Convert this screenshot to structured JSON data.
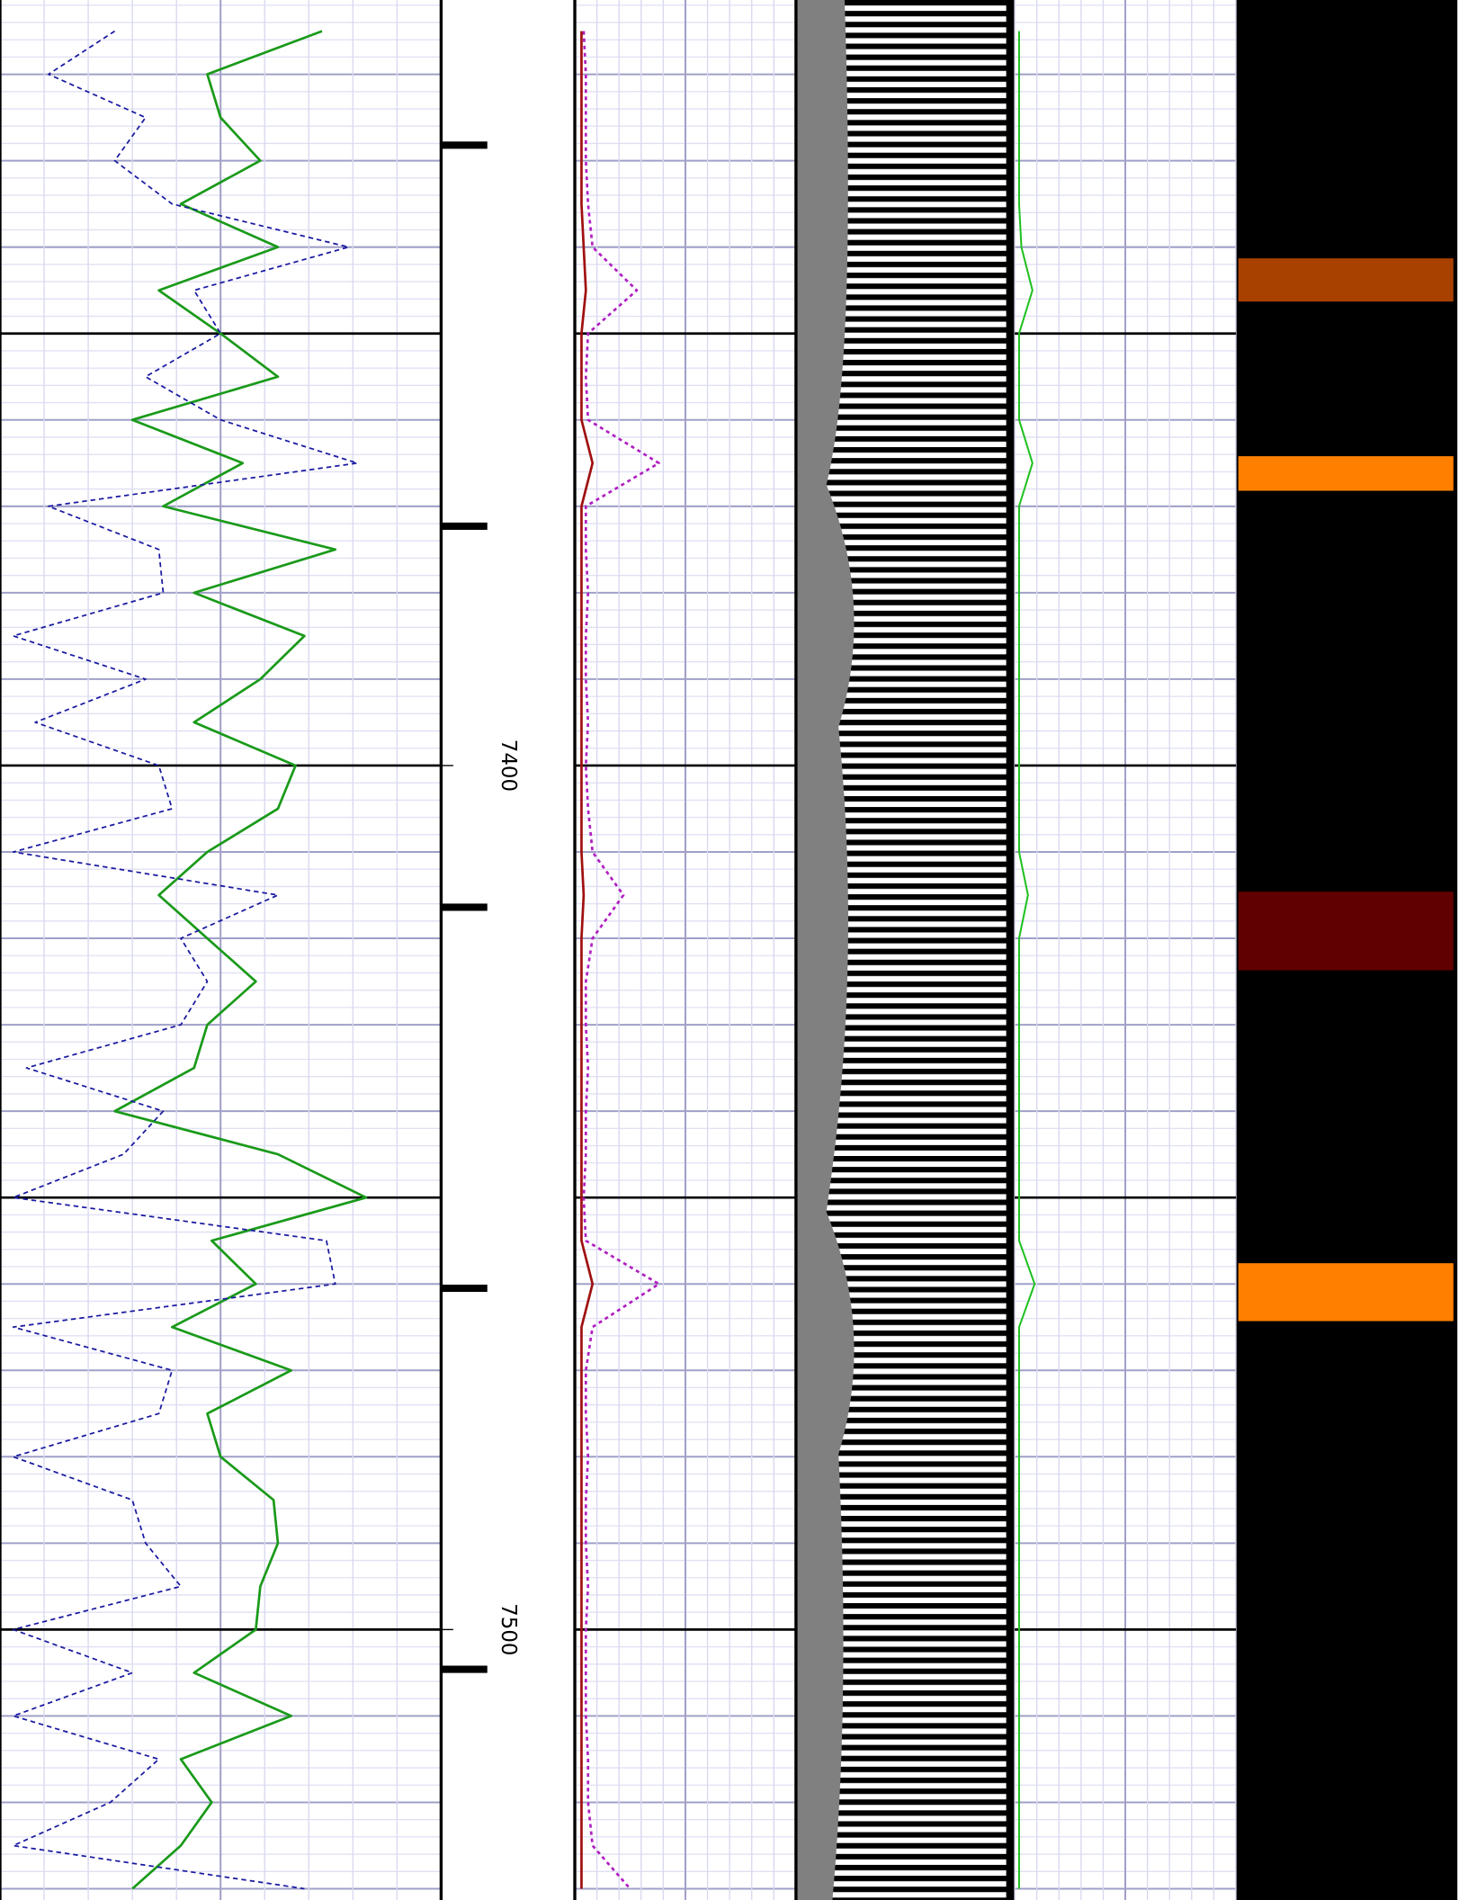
{
  "chart_data": {
    "type": "well-log",
    "ylim": [
      7311.4,
      7531.3
    ],
    "yticks": [
      7400,
      7500
    ],
    "major_grid": [
      7350,
      7400,
      7450,
      7500
    ],
    "grid_step": 10,
    "minor_step": 2,
    "xlim": [
      0,
      10
    ],
    "xgrid_step": 1,
    "markers": [
      7328.2,
      7372.3,
      7416.4,
      7460.5,
      7504.6
    ],
    "depth": [
      7315,
      7320,
      7325,
      7330,
      7335,
      7340,
      7345,
      7350,
      7355,
      7360,
      7365,
      7370,
      7375,
      7380,
      7385,
      7390,
      7395,
      7400,
      7405,
      7410,
      7415,
      7420,
      7425,
      7430,
      7435,
      7440,
      7445,
      7450,
      7455,
      7460,
      7465,
      7470,
      7475,
      7480,
      7485,
      7490,
      7495,
      7500,
      7505,
      7510,
      7515,
      7520,
      7525,
      7530
    ],
    "series": [
      {
        "track": 1,
        "color": "#1a9a1a",
        "dash": "none",
        "width": 2,
        "values": [
          7.3,
          4.7,
          5.0,
          5.9,
          4.1,
          6.3,
          3.6,
          5.0,
          6.3,
          3.0,
          5.5,
          3.7,
          7.6,
          4.4,
          6.9,
          5.9,
          4.4,
          6.7,
          6.3,
          4.7,
          3.6,
          4.7,
          5.8,
          4.7,
          4.4,
          2.6,
          6.3,
          8.3,
          4.8,
          5.8,
          3.9,
          6.6,
          4.7,
          5.0,
          6.2,
          6.3,
          5.9,
          5.8,
          4.4,
          6.6,
          4.1,
          4.8,
          4.1,
          3.0
        ]
      },
      {
        "track": 1,
        "color": "#1a1aa0",
        "dash": "4 3",
        "width": 1.3,
        "values": [
          2.6,
          1.1,
          3.3,
          2.6,
          3.9,
          7.9,
          4.4,
          5.0,
          3.3,
          5.0,
          8.1,
          1.1,
          3.6,
          3.7,
          0.3,
          3.3,
          0.8,
          3.6,
          3.9,
          0.3,
          6.3,
          4.1,
          4.7,
          4.1,
          0.6,
          3.7,
          2.8,
          0.3,
          7.4,
          7.6,
          0.3,
          3.9,
          3.6,
          0.3,
          3.0,
          3.3,
          4.1,
          0.3,
          3.0,
          0.3,
          3.6,
          2.5,
          0.3,
          6.9
        ]
      },
      {
        "track": 2,
        "color": "#b020c0",
        "dash": "3 3",
        "width": 2,
        "values": [
          0.4,
          0.5,
          0.5,
          0.5,
          0.6,
          0.8,
          2.8,
          0.6,
          0.5,
          0.6,
          3.8,
          0.5,
          0.5,
          0.6,
          0.5,
          0.5,
          0.6,
          0.5,
          0.6,
          0.8,
          2.2,
          0.8,
          0.5,
          0.5,
          0.6,
          0.5,
          0.5,
          0.4,
          0.5,
          3.8,
          0.8,
          0.5,
          0.5,
          0.6,
          0.5,
          0.5,
          0.6,
          0.5,
          0.5,
          0.5,
          0.6,
          0.6,
          0.8,
          2.5
        ]
      },
      {
        "track": 2,
        "color": "#a01010",
        "dash": "none",
        "width": 2,
        "values": [
          0.3,
          0.3,
          0.3,
          0.3,
          0.3,
          0.4,
          0.5,
          0.3,
          0.3,
          0.3,
          0.8,
          0.3,
          0.3,
          0.3,
          0.3,
          0.3,
          0.3,
          0.3,
          0.3,
          0.3,
          0.4,
          0.3,
          0.3,
          0.3,
          0.3,
          0.3,
          0.3,
          0.3,
          0.3,
          0.8,
          0.3,
          0.3,
          0.3,
          0.3,
          0.3,
          0.3,
          0.3,
          0.3,
          0.3,
          0.3,
          0.3,
          0.3,
          0.3,
          0.3
        ]
      },
      {
        "track": 3,
        "color": "#20c020",
        "dash": "none",
        "width": 1.5,
        "values": [
          0.2,
          0.2,
          0.2,
          0.2,
          0.2,
          0.3,
          0.8,
          0.2,
          0.2,
          0.2,
          0.8,
          0.2,
          0.2,
          0.2,
          0.2,
          0.2,
          0.2,
          0.2,
          0.2,
          0.2,
          0.6,
          0.2,
          0.2,
          0.2,
          0.2,
          0.2,
          0.2,
          0.2,
          0.2,
          0.9,
          0.2,
          0.2,
          0.2,
          0.2,
          0.2,
          0.2,
          0.2,
          0.2,
          0.2,
          0.2,
          0.2,
          0.2,
          0.2,
          0.2
        ]
      }
    ],
    "bands": [
      {
        "top": 7341.3,
        "bottom": 7346.3,
        "color": "#a84000"
      },
      {
        "top": 7364.2,
        "bottom": 7368.2,
        "color": "#ff8000"
      },
      {
        "top": 7414.6,
        "bottom": 7423.7,
        "color": "#600000"
      },
      {
        "top": 7457.6,
        "bottom": 7464.3,
        "color": "#ff8000"
      }
    ]
  }
}
